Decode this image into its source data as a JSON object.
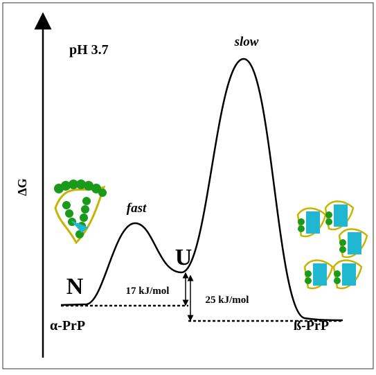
{
  "axis": {
    "label": "ΔG"
  },
  "condition": "pH 3.7",
  "states": {
    "native": {
      "label": "N",
      "name": "α-PrP"
    },
    "unfolded": {
      "label": "U"
    },
    "oligomer": {
      "name": "ß-PrP"
    }
  },
  "transitions": [
    {
      "label": "fast"
    },
    {
      "label": "slow"
    }
  ],
  "energies": [
    {
      "label": "17 kJ/mol"
    },
    {
      "label": "25 kJ/mol"
    }
  ]
}
